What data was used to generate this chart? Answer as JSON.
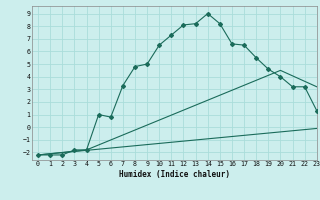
{
  "xlabel": "Humidex (Indice chaleur)",
  "bg_color": "#cceeed",
  "grid_color": "#aaddda",
  "line_color": "#1a6b5a",
  "line1_x": [
    0,
    1,
    2,
    3,
    4,
    5,
    6,
    7,
    8,
    9,
    10,
    11,
    12,
    13,
    14,
    15,
    16,
    17,
    18,
    19,
    20,
    21,
    22,
    23
  ],
  "line1_y": [
    -2.2,
    -2.2,
    -2.2,
    -1.8,
    -1.8,
    1.0,
    0.8,
    3.3,
    4.8,
    5.0,
    6.5,
    7.3,
    8.1,
    8.2,
    9.0,
    8.2,
    6.6,
    6.5,
    5.5,
    4.6,
    4.0,
    3.2,
    3.2,
    1.3
  ],
  "line2_x": [
    0,
    4,
    20,
    23
  ],
  "line2_y": [
    -2.2,
    -1.8,
    4.5,
    3.2
  ],
  "line3_x": [
    0,
    23
  ],
  "line3_y": [
    -2.2,
    -0.1
  ],
  "xlim": [
    -0.5,
    23
  ],
  "ylim": [
    -2.6,
    9.6
  ],
  "yticks": [
    -2,
    -1,
    0,
    1,
    2,
    3,
    4,
    5,
    6,
    7,
    8,
    9
  ],
  "xticks": [
    0,
    1,
    2,
    3,
    4,
    5,
    6,
    7,
    8,
    9,
    10,
    11,
    12,
    13,
    14,
    15,
    16,
    17,
    18,
    19,
    20,
    21,
    22,
    23
  ]
}
